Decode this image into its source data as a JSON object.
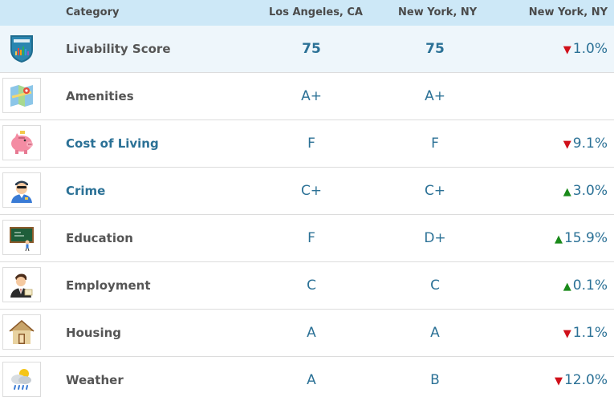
{
  "header": {
    "category": "Category",
    "col_la": "Los Angeles, CA",
    "col_ny": "New York, NY",
    "col_diff": "New York, NY"
  },
  "rows": [
    {
      "icon": "areavibes-shield-icon",
      "category": "Livability Score",
      "la": "75",
      "ny": "75",
      "diff_dir": "down",
      "diff": "1.0%",
      "link": false
    },
    {
      "icon": "map-icon",
      "category": "Amenities",
      "la": "A+",
      "ny": "A+",
      "diff_dir": "",
      "diff": "",
      "link": false
    },
    {
      "icon": "piggy-bank-icon",
      "category": "Cost of Living",
      "la": "F",
      "ny": "F",
      "diff_dir": "down",
      "diff": "9.1%",
      "link": true
    },
    {
      "icon": "police-officer-icon",
      "category": "Crime",
      "la": "C+",
      "ny": "C+",
      "diff_dir": "up",
      "diff": "3.0%",
      "link": true
    },
    {
      "icon": "chalkboard-icon",
      "category": "Education",
      "la": "F",
      "ny": "D+",
      "diff_dir": "up",
      "diff": "15.9%",
      "link": false
    },
    {
      "icon": "businessman-icon",
      "category": "Employment",
      "la": "C",
      "ny": "C",
      "diff_dir": "up",
      "diff": "0.1%",
      "link": false
    },
    {
      "icon": "house-icon",
      "category": "Housing",
      "la": "A",
      "ny": "A",
      "diff_dir": "down",
      "diff": "1.1%",
      "link": false
    },
    {
      "icon": "weather-icon",
      "category": "Weather",
      "la": "A",
      "ny": "B",
      "diff_dir": "down",
      "diff": "12.0%",
      "link": false
    }
  ],
  "arrows": {
    "down": "▼",
    "up": "▲"
  },
  "colors": {
    "header_bg": "#cde8f7",
    "link": "#2b7196",
    "down": "#d0101a",
    "up": "#1a8a1a"
  }
}
